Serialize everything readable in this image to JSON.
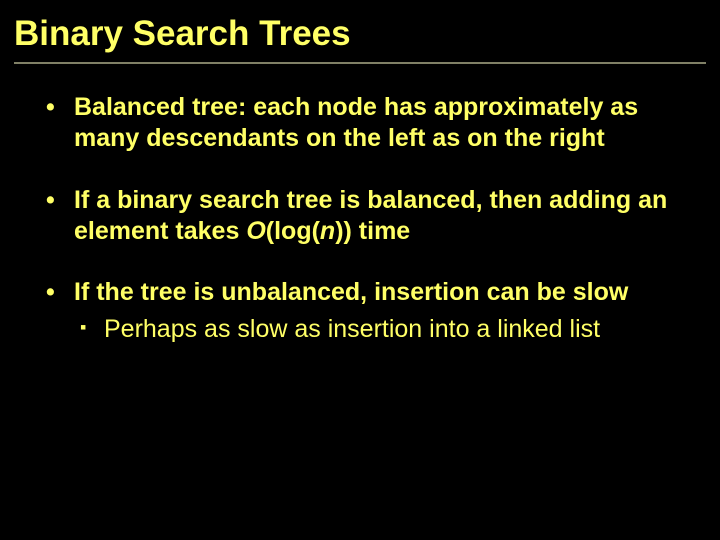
{
  "slide": {
    "title": "Binary Search Trees",
    "bullets": [
      {
        "text": "Balanced tree: each node has approximately as many descendants on the left as on the right"
      },
      {
        "html": "If a binary search tree is balanced, then adding an element takes <span class=\"ital\">O</span>(log(<span class=\"ital\">n</span>)) time"
      },
      {
        "text": "If the tree is unbalanced, insertion can be slow",
        "sub": [
          {
            "text": "Perhaps as slow as insertion into a linked list"
          }
        ]
      }
    ]
  },
  "colors": {
    "background": "#000000",
    "text": "#ffff66",
    "rule": "#808066"
  },
  "typography": {
    "title_fontsize": 35,
    "body_fontsize": 25,
    "font_family": "Arial"
  }
}
